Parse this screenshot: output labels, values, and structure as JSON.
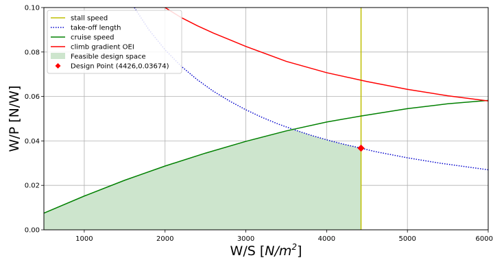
{
  "chart_data": {
    "type": "line",
    "title": "",
    "xlabel": "W/S",
    "xlabel_unit_base": "N/m",
    "xlabel_unit_exp": "2",
    "ylabel": "W/P [N/W]",
    "xlim": [
      500,
      6000
    ],
    "ylim": [
      0,
      0.1
    ],
    "xticks": [
      "1000",
      "2000",
      "3000",
      "4000",
      "5000",
      "6000"
    ],
    "yticks": [
      "0.00",
      "0.02",
      "0.04",
      "0.06",
      "0.08",
      "0.10"
    ],
    "grid": true,
    "legend_position": "top-left",
    "series": [
      {
        "name": "stall speed",
        "style": "solid",
        "color": "#bfbf00",
        "kind": "vertical",
        "x": 4426
      },
      {
        "name": "take-off length",
        "style": "dotted",
        "color": "#0000cc",
        "x": [
          1620,
          1800,
          2000,
          2200,
          2400,
          2600,
          2800,
          3000,
          3200,
          3400,
          3600,
          3800,
          4000,
          4200,
          4426,
          4600,
          4800,
          5000,
          5200,
          5400,
          5600,
          5800,
          6000
        ],
        "y": [
          0.1,
          0.09,
          0.081,
          0.0736,
          0.0675,
          0.0623,
          0.0579,
          0.054,
          0.0506,
          0.0476,
          0.045,
          0.0426,
          0.0405,
          0.0386,
          0.03674,
          0.0352,
          0.0338,
          0.0324,
          0.0312,
          0.03,
          0.029,
          0.028,
          0.027
        ]
      },
      {
        "name": "cruise speed",
        "style": "solid",
        "color": "#008000",
        "x": [
          500,
          1000,
          1500,
          2000,
          2500,
          3000,
          3500,
          4000,
          4426,
          5000,
          5500,
          6000
        ],
        "y": [
          0.0075,
          0.0152,
          0.0223,
          0.0287,
          0.0345,
          0.0398,
          0.0445,
          0.0485,
          0.0512,
          0.0545,
          0.0567,
          0.0582
        ]
      },
      {
        "name": "climb gradient OEI",
        "style": "solid",
        "color": "#ff0000",
        "x": [
          2000,
          2200,
          2400,
          2600,
          2800,
          3000,
          3500,
          4000,
          4500,
          5000,
          5500,
          6000
        ],
        "y": [
          0.1,
          0.0955,
          0.0918,
          0.0885,
          0.0855,
          0.0825,
          0.0758,
          0.0707,
          0.0667,
          0.0632,
          0.0603,
          0.058
        ]
      }
    ],
    "feasible_region": {
      "name": "Feasible design space",
      "color": "#cde5cd",
      "x_start": 500,
      "x_end": 4426
    },
    "design_point": {
      "name": "Design Point (4426,0.03674)",
      "x": 4426,
      "y": 0.03674,
      "color": "#ff0000"
    }
  }
}
